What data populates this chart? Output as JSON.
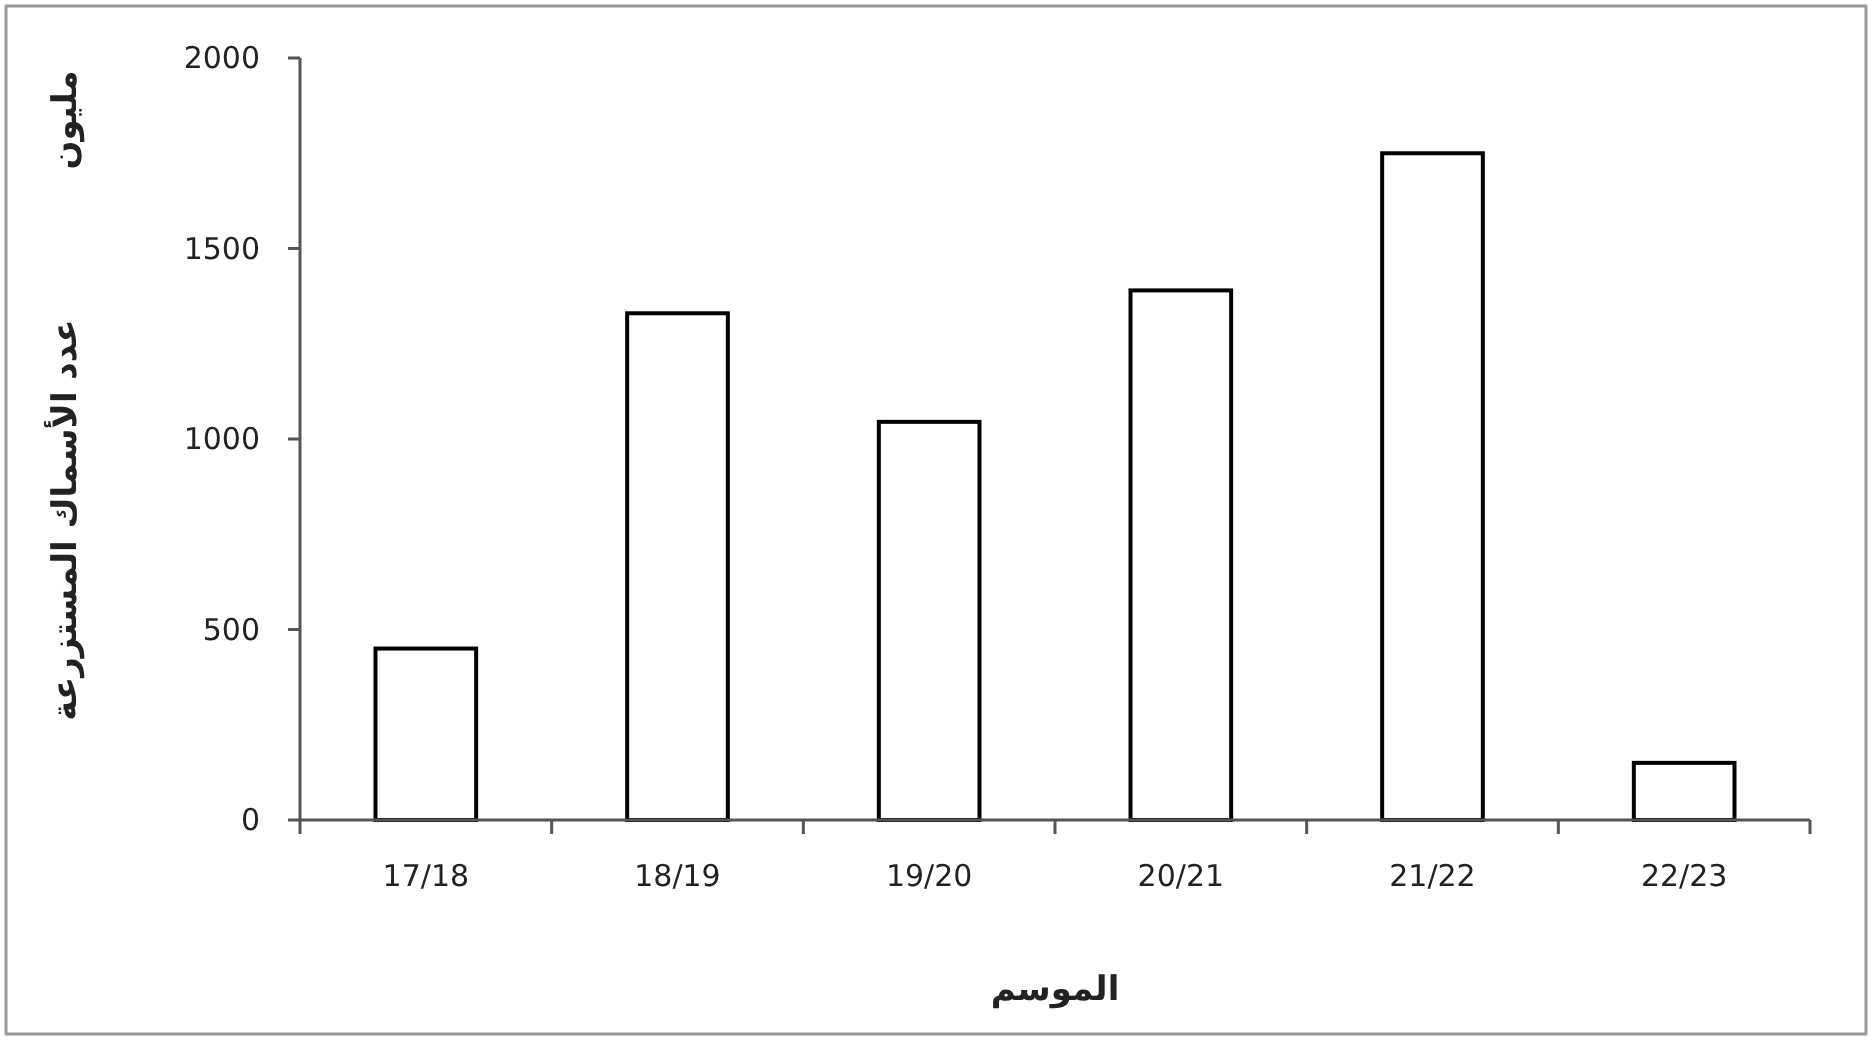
{
  "chart_data": {
    "type": "bar",
    "categories": [
      "17/18",
      "18/19",
      "19/20",
      "20/21",
      "21/22",
      "22/23"
    ],
    "values": [
      450,
      1330,
      1045,
      1390,
      1750,
      150
    ],
    "color": "#ffffff",
    "ylim": [
      0,
      2000
    ],
    "yticks": [
      0,
      500,
      1000,
      1500,
      2000
    ],
    "xlabel": "الموسم",
    "ylabel": "عدد الأسماك المستزرعة",
    "annotations": [
      "مليون"
    ]
  }
}
